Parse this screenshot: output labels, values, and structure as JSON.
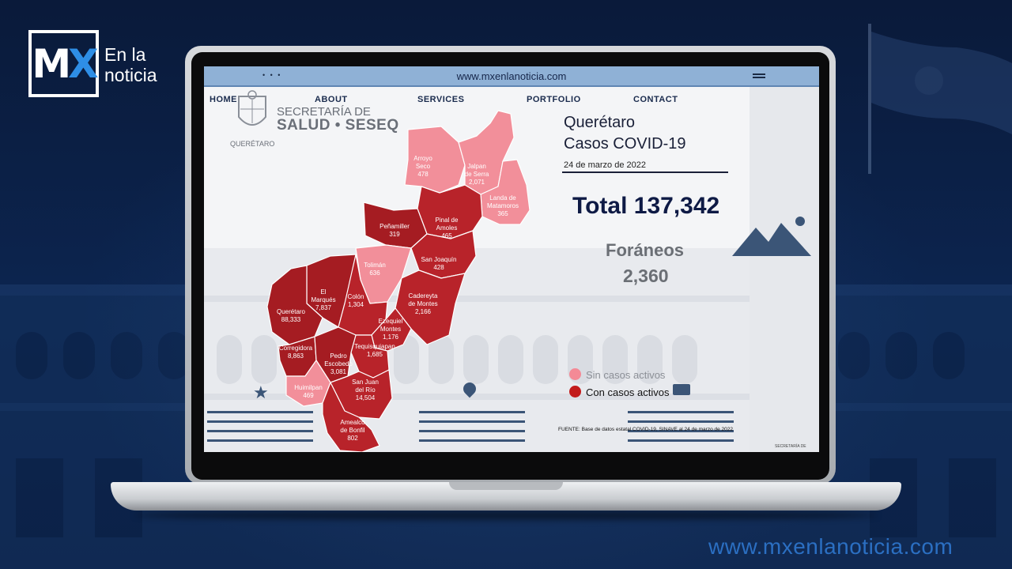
{
  "brand": {
    "logo_mx": "MX",
    "logo_line1": "En la",
    "logo_line2": "noticia",
    "footer_url": "www.mxenlanoticia.com"
  },
  "browser": {
    "url": "www.mxenlanoticia.com",
    "dots": "• • •"
  },
  "nav": {
    "home": "HOME",
    "about": "ABOUT",
    "services": "SERVICES",
    "portfolio": "PORTFOLIO",
    "contact": "CONTACT"
  },
  "seseq": {
    "title_line1": "SECRETARÍA DE",
    "title_line2": "SALUD • SESEQ",
    "subtitle": "QUERÉTARO"
  },
  "info": {
    "title_line1": "Querétaro",
    "title_line2": "Casos COVID-19",
    "date": "24 de marzo de 2022",
    "total": "Total 137,342",
    "foraneos_label": "Foráneos",
    "foraneos_value": "2,360"
  },
  "legend": {
    "inactive_label": "Sin casos activos",
    "active_label": "Con casos activos",
    "inactive_color": "#f48a96",
    "active_color": "#c21a1a"
  },
  "source_text": "FUENTE: Base de datos estatal COVID-19, SINAVE al 24 de marzo de 2022",
  "corner_label": "SECRETARÍA DE",
  "colors": {
    "map_light": "#f28f9a",
    "map_mid": "#b8232a",
    "map_dark": "#a51c22"
  },
  "municipalities": [
    {
      "name1": "Arroyo",
      "name2": "Seco",
      "value": "478",
      "status": "inactive"
    },
    {
      "name1": "Jalpan",
      "name2": "de Serra",
      "value": "2,071",
      "status": "inactive"
    },
    {
      "name1": "Landa de",
      "name2": "Matamoros",
      "value": "365",
      "status": "inactive"
    },
    {
      "name1": "Pinal de",
      "name2": "Amoles",
      "value": "465",
      "status": "active"
    },
    {
      "name1": "Peñamiller",
      "name2": "",
      "value": "319",
      "status": "active"
    },
    {
      "name1": "Tolimán",
      "name2": "",
      "value": "636",
      "status": "inactive"
    },
    {
      "name1": "San Joaquín",
      "name2": "",
      "value": "428",
      "status": "active"
    },
    {
      "name1": "Cadereyta",
      "name2": "de Montes",
      "value": "2,166",
      "status": "active"
    },
    {
      "name1": "El",
      "name2": "Marqués",
      "value": "7,837",
      "status": "active"
    },
    {
      "name1": "Colón",
      "name2": "",
      "value": "1,304",
      "status": "active"
    },
    {
      "name1": "Querétaro",
      "name2": "",
      "value": "88,333",
      "status": "active"
    },
    {
      "name1": "Ezequiel",
      "name2": "Montes",
      "value": "1,176",
      "status": "active"
    },
    {
      "name1": "Corregidora",
      "name2": "",
      "value": "8,863",
      "status": "active"
    },
    {
      "name1": "Tequisquiapan",
      "name2": "",
      "value": "1,685",
      "status": "active"
    },
    {
      "name1": "Pedro",
      "name2": "Escobedo",
      "value": "3,081",
      "status": "active"
    },
    {
      "name1": "Huimilpan",
      "name2": "",
      "value": "469",
      "status": "inactive"
    },
    {
      "name1": "San Juan",
      "name2": "del Río",
      "value": "14,504",
      "status": "active"
    },
    {
      "name1": "Amealco",
      "name2": "de Bonfil",
      "value": "802",
      "status": "active"
    }
  ]
}
